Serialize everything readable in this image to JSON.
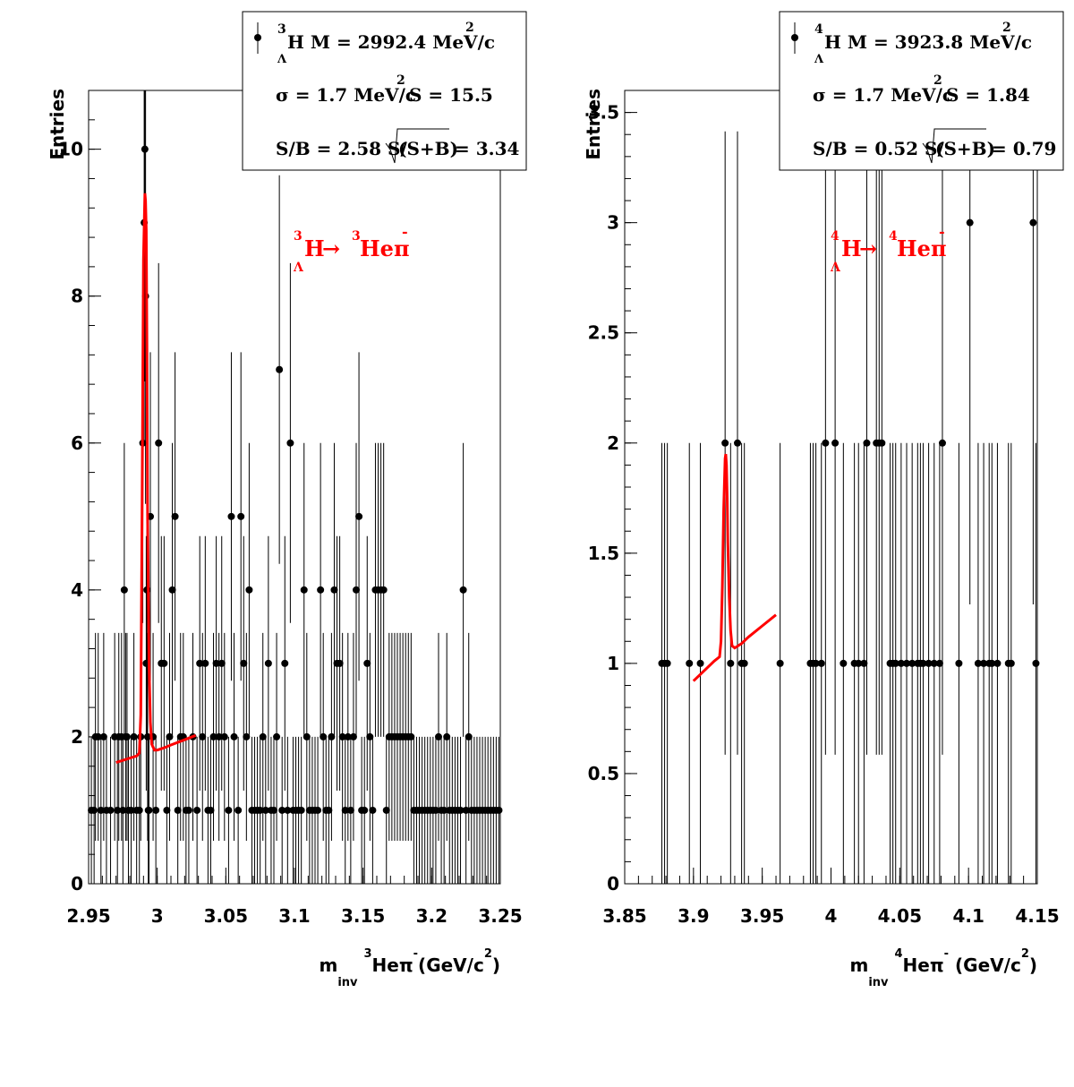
{
  "chart_data": [
    {
      "type": "scatter",
      "ylabel": "Entries",
      "xlabel": {
        "main": "m",
        "sub": "inv",
        "nuc": "3",
        "part": "Heπ",
        "minus": "-",
        "unit": "(GeV/c",
        "unit_sup": "2",
        "close": ")"
      },
      "xlim": [
        2.95,
        3.25
      ],
      "ylim": [
        0,
        10.8
      ],
      "xticks": [
        "2.95",
        "3",
        "3.05",
        "3.1",
        "3.15",
        "3.2",
        "3.25"
      ],
      "xtick_values": [
        2.95,
        3.0,
        3.05,
        3.1,
        3.15,
        3.2,
        3.25
      ],
      "yticks": [
        "0",
        "2",
        "4",
        "6",
        "8",
        "10"
      ],
      "ytick_values": [
        0,
        2,
        4,
        6,
        8,
        10
      ],
      "stats": {
        "line1": {
          "sup": "3",
          "sub": "Λ",
          "text": "H M = 2992.4 MeV/c",
          "unit_sup": "2"
        },
        "line2": {
          "text": "σ = 1.7 MeV/c",
          "unit_sup": "2",
          "tail": "S = 15.5"
        },
        "line3": {
          "left": "S/B = 2.58  S/",
          "inside": "(S+B)",
          "right": "= 3.34"
        }
      },
      "decay": {
        "sup1": "3",
        "sub1": "Λ",
        "h": "H",
        "arrow": "→",
        "sup2": "3",
        "he": "Heπ",
        "minus": "-"
      },
      "series": [
        {
          "kind": "points",
          "x": [
            2.952,
            2.954,
            2.955,
            2.957,
            2.959,
            2.961,
            2.963,
            2.966,
            2.969,
            2.971,
            2.972,
            2.974,
            2.975,
            2.976,
            2.977,
            2.978,
            2.979,
            2.981,
            2.983,
            2.985,
            2.987,
            2.988,
            2.9895,
            2.9905,
            2.991,
            2.9915,
            2.992,
            2.9925,
            2.993,
            2.9935,
            2.994,
            2.995,
            2.997,
            2.999,
            3.001,
            3.003,
            3.005,
            3.007,
            3.009,
            3.011,
            3.013,
            3.015,
            3.017,
            3.019,
            3.021,
            3.023,
            3.026,
            3.029,
            3.031,
            3.033,
            3.035,
            3.037,
            3.039,
            3.041,
            3.043,
            3.045,
            3.047,
            3.049,
            3.052,
            3.054,
            3.056,
            3.059,
            3.061,
            3.063,
            3.065,
            3.067,
            3.069,
            3.071,
            3.073,
            3.075,
            3.077,
            3.079,
            3.081,
            3.083,
            3.085,
            3.087,
            3.089,
            3.091,
            3.093,
            3.095,
            3.097,
            3.099,
            3.101,
            3.103,
            3.105,
            3.107,
            3.109,
            3.111,
            3.113,
            3.115,
            3.117,
            3.119,
            3.121,
            3.123,
            3.125,
            3.127,
            3.129,
            3.131,
            3.133,
            3.135,
            3.137,
            3.139,
            3.141,
            3.143,
            3.145,
            3.147,
            3.149,
            3.151,
            3.153,
            3.155,
            3.157,
            3.159,
            3.161,
            3.163,
            3.165,
            3.167,
            3.169,
            3.171,
            3.173,
            3.175,
            3.177,
            3.179,
            3.181,
            3.183,
            3.185,
            3.187,
            3.189,
            3.191,
            3.193,
            3.195,
            3.197,
            3.199,
            3.201,
            3.203,
            3.205,
            3.207,
            3.209,
            3.211,
            3.213,
            3.215,
            3.217,
            3.219,
            3.221,
            3.223,
            3.225,
            3.227,
            3.229,
            3.231,
            3.233,
            3.235,
            3.237,
            3.239,
            3.241,
            3.243,
            3.245,
            3.247,
            3.249
          ],
          "y": [
            1,
            1,
            2,
            2,
            1,
            2,
            1,
            1,
            2,
            1,
            2,
            2,
            1,
            4,
            2,
            2,
            1,
            1,
            2,
            1,
            1,
            2,
            6,
            9,
            10,
            8,
            3,
            4,
            2,
            1,
            1,
            5,
            2,
            1,
            6,
            3,
            3,
            1,
            2,
            4,
            5,
            1,
            2,
            2,
            1,
            1,
            2,
            1,
            3,
            2,
            3,
            1,
            1,
            2,
            3,
            2,
            3,
            2,
            1,
            5,
            2,
            1,
            5,
            3,
            2,
            4,
            1,
            1,
            1,
            1,
            2,
            1,
            3,
            1,
            1,
            2,
            7,
            1,
            3,
            1,
            6,
            1,
            1,
            1,
            1,
            4,
            2,
            1,
            1,
            1,
            1,
            4,
            2,
            1,
            1,
            2,
            4,
            3,
            3,
            2,
            1,
            2,
            1,
            2,
            4,
            5,
            1,
            1,
            3,
            2,
            1,
            4,
            4,
            4,
            4,
            1,
            2,
            2,
            2,
            2,
            2,
            2,
            2,
            2,
            2,
            1,
            1,
            1,
            1,
            1,
            1,
            1,
            1,
            1,
            2,
            1,
            1,
            2,
            1,
            1,
            1,
            1,
            1,
            4,
            1,
            2,
            1,
            1,
            1,
            1,
            1,
            1,
            1,
            1,
            1,
            1,
            1
          ]
        },
        {
          "kind": "fit",
          "x": [
            2.97,
            2.975,
            2.98,
            2.985,
            2.987,
            2.988,
            2.989,
            2.99,
            2.991,
            2.9915,
            2.992,
            2.9925,
            2.993,
            2.994,
            2.995,
            2.996,
            2.998,
            3.0,
            3.005,
            3.01,
            3.02,
            3.028
          ],
          "y": [
            1.65,
            1.68,
            1.71,
            1.74,
            1.78,
            2.3,
            5.2,
            8.5,
            9.4,
            9.3,
            8.9,
            7.2,
            5.0,
            3.0,
            2.2,
            1.9,
            1.82,
            1.82,
            1.85,
            1.89,
            1.96,
            2.02
          ],
          "color": "#ff0000"
        }
      ]
    },
    {
      "type": "scatter",
      "ylabel": "Entries",
      "xlabel": {
        "main": "m",
        "sub": "inv",
        "nuc": "4",
        "part": "Heπ",
        "minus": "-",
        "unit": " (GeV/c",
        "unit_sup": "2",
        "close": ")"
      },
      "xlim": [
        3.85,
        4.15
      ],
      "ylim": [
        0,
        3.6
      ],
      "xticks": [
        "3.85",
        "3.9",
        "3.95",
        "4",
        "4.05",
        "4.1",
        "4.15"
      ],
      "xtick_values": [
        3.85,
        3.9,
        3.95,
        4.0,
        4.05,
        4.1,
        4.15
      ],
      "yticks": [
        "0",
        "0.5",
        "1",
        "1.5",
        "2",
        "2.5",
        "3",
        "3.5"
      ],
      "ytick_values": [
        0,
        0.5,
        1,
        1.5,
        2,
        2.5,
        3,
        3.5
      ],
      "stats": {
        "line1": {
          "sup": "4",
          "sub": "Λ",
          "text": "H M = 3923.8 MeV/c",
          "unit_sup": "2"
        },
        "line2": {
          "text": "σ = 1.7 MeV/c",
          "unit_sup": "2",
          "tail": "S = 1.84"
        },
        "line3": {
          "left": "S/B = 0.52  S/",
          "inside": "(S+B)",
          "right": "= 0.79"
        }
      },
      "decay": {
        "sup1": "4",
        "sub1": "Λ",
        "h": "H",
        "arrow": "→",
        "sup2": "4",
        "he": "Heπ",
        "minus": "-"
      },
      "series": [
        {
          "kind": "points",
          "x": [
            3.877,
            3.879,
            3.881,
            3.897,
            3.905,
            3.923,
            3.927,
            3.932,
            3.935,
            3.937,
            3.963,
            3.985,
            3.987,
            3.989,
            3.993,
            3.996,
            4.003,
            4.009,
            4.017,
            4.02,
            4.024,
            4.026,
            4.033,
            4.035,
            4.037,
            4.043,
            4.045,
            4.047,
            4.051,
            4.055,
            4.059,
            4.063,
            4.065,
            4.067,
            4.071,
            4.075,
            4.079,
            4.081,
            4.093,
            4.101,
            4.107,
            4.111,
            4.115,
            4.117,
            4.121,
            4.129,
            4.131,
            4.147,
            4.149
          ],
          "y": [
            1,
            1,
            1,
            1,
            1,
            2,
            1,
            2,
            1,
            1,
            1,
            1,
            1,
            1,
            1,
            2,
            2,
            1,
            1,
            1,
            1,
            2,
            2,
            2,
            2,
            1,
            1,
            1,
            1,
            1,
            1,
            1,
            1,
            1,
            1,
            1,
            1,
            2,
            1,
            3,
            1,
            1,
            1,
            1,
            1,
            1,
            1,
            3,
            1
          ],
          "color": "#000000"
        },
        {
          "kind": "fit",
          "x": [
            3.9,
            3.905,
            3.91,
            3.915,
            3.919,
            3.92,
            3.921,
            3.922,
            3.923,
            3.9235,
            3.924,
            3.9245,
            3.925,
            3.926,
            3.927,
            3.928,
            3.93,
            3.935,
            3.94,
            3.95,
            3.96
          ],
          "y": [
            0.92,
            0.95,
            0.98,
            1.01,
            1.03,
            1.1,
            1.35,
            1.7,
            1.93,
            1.95,
            1.9,
            1.75,
            1.55,
            1.3,
            1.15,
            1.08,
            1.07,
            1.09,
            1.12,
            1.17,
            1.22
          ],
          "color": "#ff0000"
        }
      ]
    }
  ]
}
